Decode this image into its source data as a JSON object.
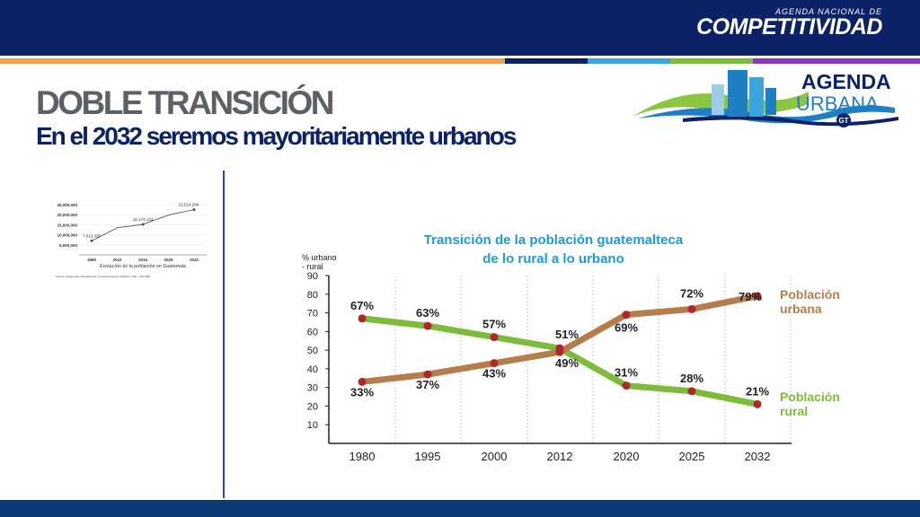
{
  "header": {
    "brand_small": "AGENDA NACIONAL DE",
    "brand_big": "COMPETITIVIDAD",
    "logo_line1": "AGENDA",
    "logo_line2": "URBANA",
    "logo_badge": "GT"
  },
  "slide": {
    "title": "DOBLE TRANSICIÓN",
    "subtitle": "En el 2032 seremos mayoritariamente urbanos"
  },
  "colors": {
    "navy": "#0b2266",
    "urban": "#b47d4b",
    "rural": "#7dbb3b",
    "point": "#b0262b",
    "title_teal": "#1f9ad6"
  },
  "chart_data": [
    {
      "type": "line",
      "title": "Evolución de la población en Guatemala",
      "source": "Fuente: Guatemala, estimaciones y proyecciones de población. INE - CELADE",
      "categories": [
        "1980",
        "2010",
        "2015",
        "2025",
        "2032"
      ],
      "y_ticks": [
        "25,000,000",
        "20,000,000",
        "15,000,000",
        "10,000,000",
        "5,000,000"
      ],
      "ylim": [
        0,
        25000000
      ],
      "series": [
        {
          "values": [
            7013435,
            13500000,
            15174133,
            19800000,
            22514296
          ]
        }
      ],
      "data_labels": [
        "7,013,435",
        "15,174,133",
        "22,514,296"
      ]
    },
    {
      "type": "line",
      "title_line1": "Transición de la población guatemalteca",
      "title_line2": "de lo rural a lo urbano",
      "ylabel_line1": "% urbano",
      "ylabel_line2": "- rural",
      "categories": [
        "1980",
        "1995",
        "2000",
        "2012",
        "2020",
        "2025",
        "2032"
      ],
      "y_ticks": [
        "90",
        "80",
        "70",
        "60",
        "50",
        "40",
        "30",
        "20",
        "10"
      ],
      "ylim": [
        0,
        90
      ],
      "grid": "vertical-dotted",
      "series": [
        {
          "name_line1": "Población",
          "name_line2": "urbana",
          "values": [
            33,
            37,
            43,
            49,
            69,
            72,
            79
          ],
          "labels": [
            "33%",
            "37%",
            "43%",
            "49%",
            "69%",
            "72%",
            "79%"
          ]
        },
        {
          "name_line1": "Población",
          "name_line2": "rural",
          "values": [
            67,
            63,
            57,
            51,
            31,
            28,
            21
          ],
          "labels": [
            "67%",
            "63%",
            "57%",
            "51%",
            "31%",
            "28%",
            "21%"
          ]
        }
      ]
    }
  ]
}
